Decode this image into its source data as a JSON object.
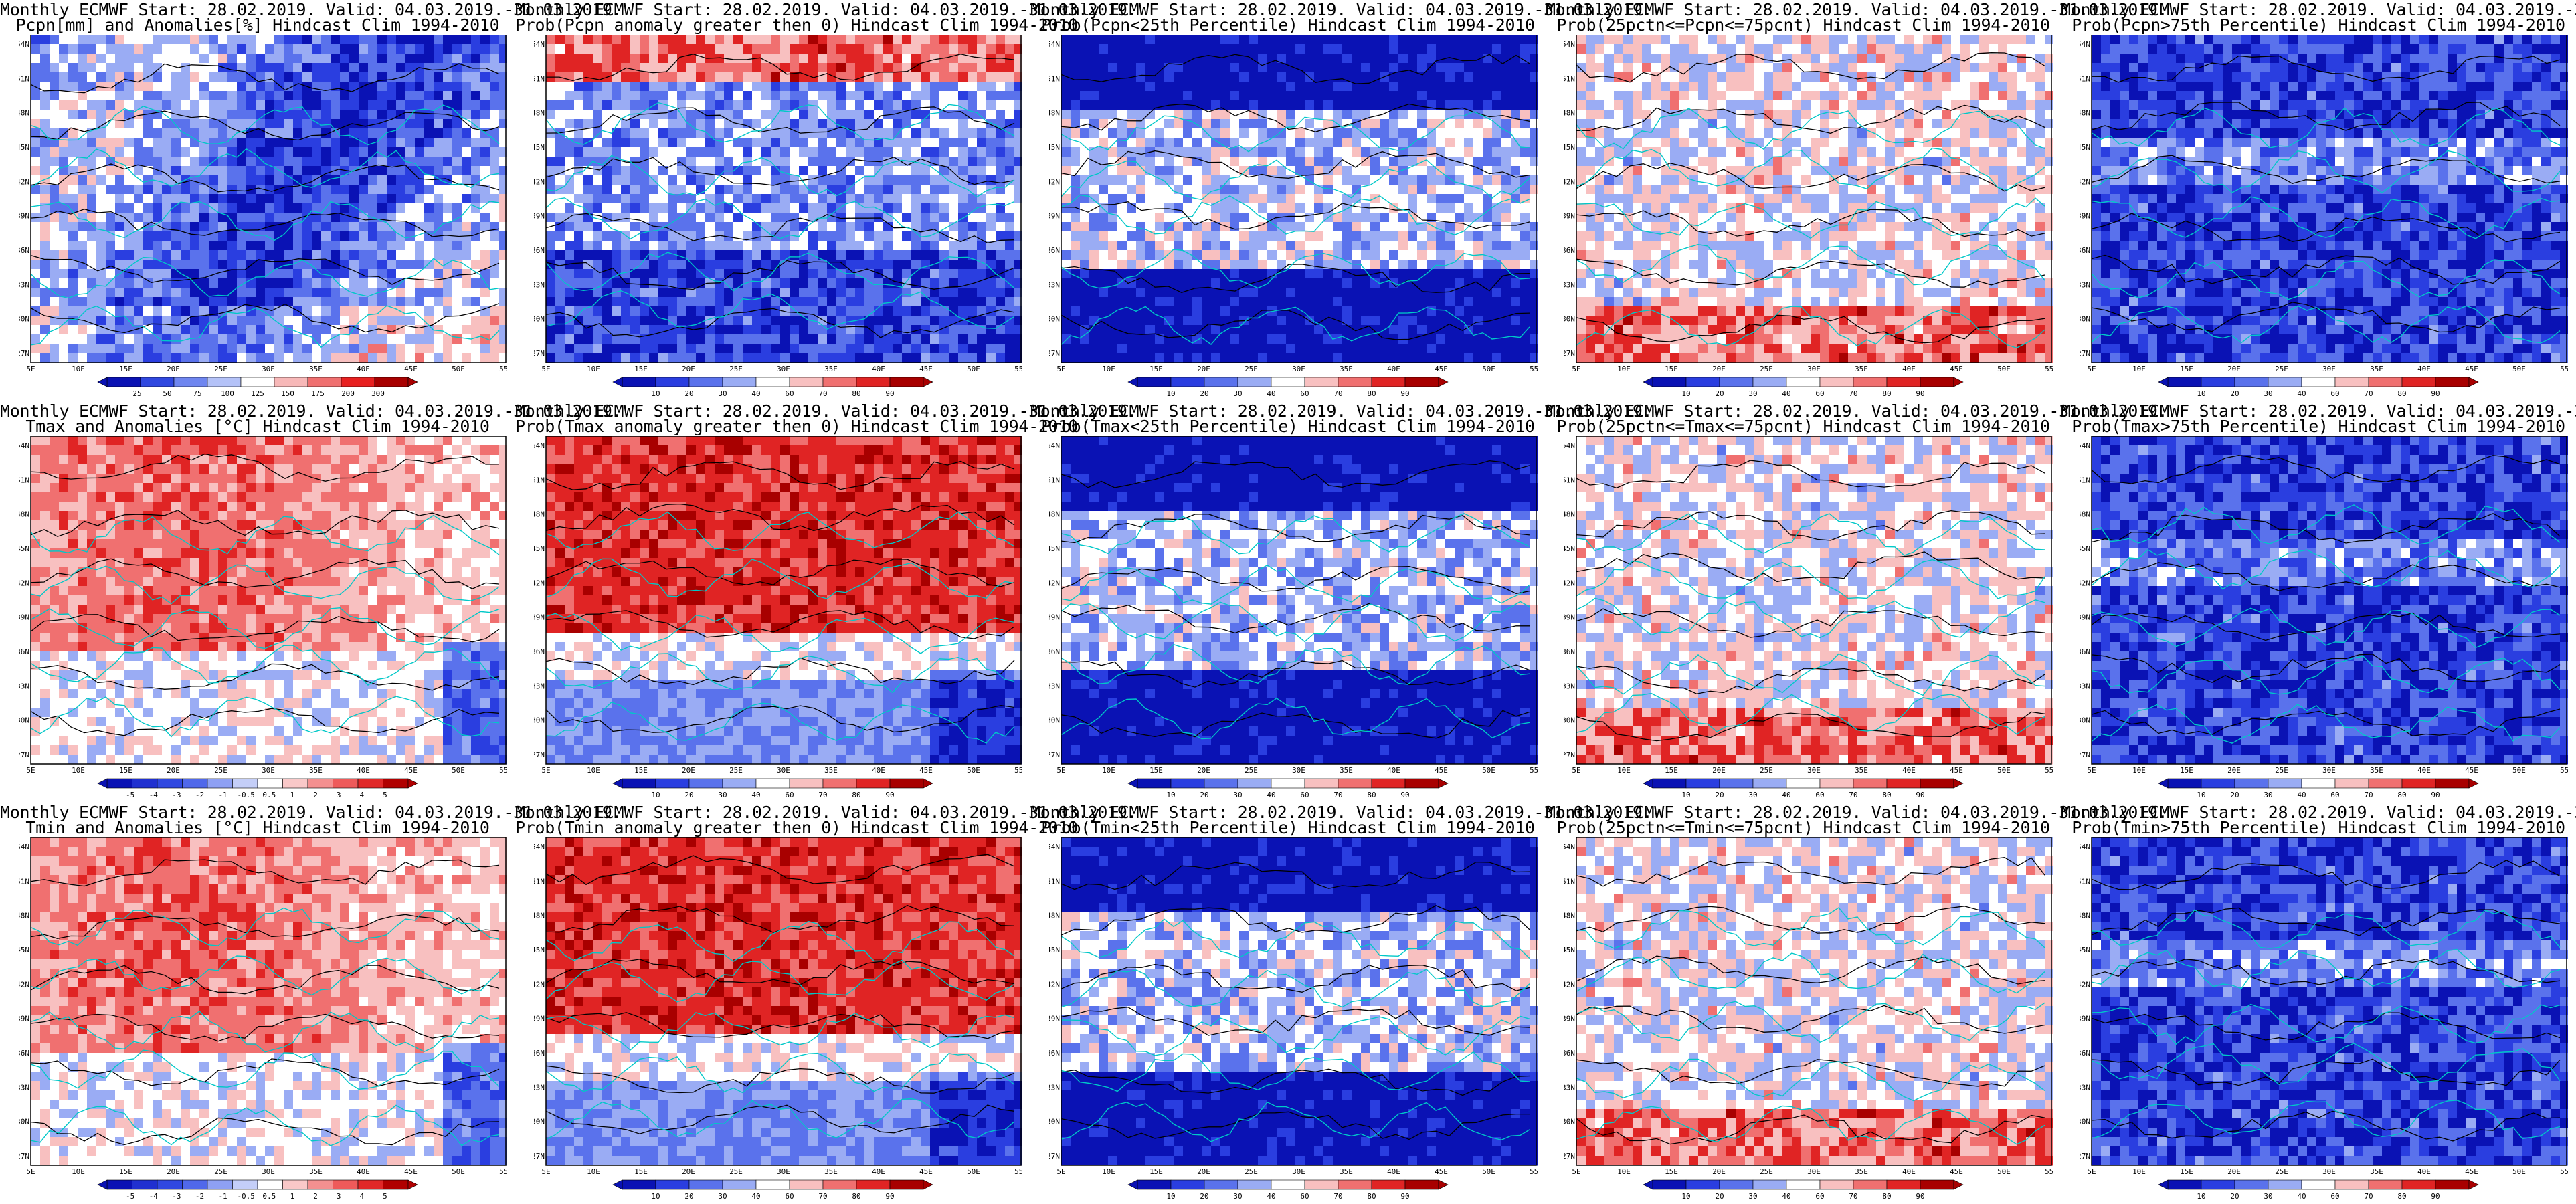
{
  "header_line": "Monthly ECMWF Start: 28.02.2019. Valid: 04.03.2019.-31.03.2019.",
  "lat_ticks": [
    "54N",
    "51N",
    "48N",
    "45N",
    "42N",
    "39N",
    "36N",
    "33N",
    "30N",
    "27N"
  ],
  "lon_ticks": [
    "5E",
    "10E",
    "15E",
    "20E",
    "25E",
    "30E",
    "35E",
    "40E",
    "45E",
    "50E",
    "55E"
  ],
  "prob_ticks": [
    "10",
    "20",
    "30",
    "40",
    "60",
    "70",
    "80",
    "90"
  ],
  "colors": {
    "blue_dark": "#0a12b4",
    "blue": "#3048e0",
    "blue_mid": "#6f86f0",
    "blue_light": "#b4c2f8",
    "white": "#ffffff",
    "red_light": "#f7b8b8",
    "red_mid": "#f07070",
    "red": "#e82020",
    "red_dark": "#a80000",
    "coast": "#00c8c8",
    "contour": "#000000"
  },
  "rows": [
    {
      "variable": "precipitation",
      "panels": [
        {
          "title": "Pcpn[mm] and Anomalies[%] Hindcast Clim 1994-2010",
          "scheme": "anomaly",
          "colorbar_ticks": [
            "25",
            "50",
            "75",
            "100",
            "125",
            "150",
            "175",
            "200",
            "300"
          ]
        },
        {
          "title": "Prob(Pcpn anomaly greater then 0) Hindcast Clim 1994-2010",
          "scheme": "prob"
        },
        {
          "title": "Prob(Pcpn<25th Percentile) Hindcast Clim 1994-2010",
          "scheme": "low"
        },
        {
          "title": "Prob(25pctn<=Pcpn<=75pcnt) Hindcast Clim 1994-2010",
          "scheme": "mid"
        },
        {
          "title": "Prob(Pcpn>75th Percentile) Hindcast Clim 1994-2010",
          "scheme": "high"
        }
      ]
    },
    {
      "variable": "tmax",
      "panels": [
        {
          "title": "Tmax and Anomalies [°C] Hindcast Clim 1994-2010",
          "scheme": "temp",
          "colorbar_ticks": [
            "-5",
            "-4",
            "-3",
            "-2",
            "-1",
            "-0.5",
            "0.5",
            "1",
            "2",
            "3",
            "4",
            "5"
          ]
        },
        {
          "title": "Prob(Tmax anomaly greater then 0) Hindcast Clim 1994-2010",
          "scheme": "prob_red"
        },
        {
          "title": "Prob(Tmax<25th Percentile) Hindcast Clim 1994-2010",
          "scheme": "low"
        },
        {
          "title": "Prob(25pctn<=Tmax<=75pcnt) Hindcast Clim 1994-2010",
          "scheme": "mid"
        },
        {
          "title": "Prob(Tmax>75th Percentile) Hindcast Clim 1994-2010",
          "scheme": "high"
        }
      ]
    },
    {
      "variable": "tmin",
      "panels": [
        {
          "title": "Tmin and Anomalies [°C] Hindcast Clim 1994-2010",
          "scheme": "temp",
          "colorbar_ticks": [
            "-5",
            "-4",
            "-3",
            "-2",
            "-1",
            "-0.5",
            "0.5",
            "1",
            "2",
            "3",
            "4",
            "5"
          ]
        },
        {
          "title": "Prob(Tmin anomaly greater then 0) Hindcast Clim 1994-2010",
          "scheme": "prob_red"
        },
        {
          "title": "Prob(Tmin<25th Percentile) Hindcast Clim 1994-2010",
          "scheme": "low"
        },
        {
          "title": "Prob(25pctn<=Tmin<=75pcnt) Hindcast Clim 1994-2010",
          "scheme": "mid"
        },
        {
          "title": "Prob(Tmin>75th Percentile) Hindcast Clim 1994-2010",
          "scheme": "high"
        }
      ]
    }
  ]
}
